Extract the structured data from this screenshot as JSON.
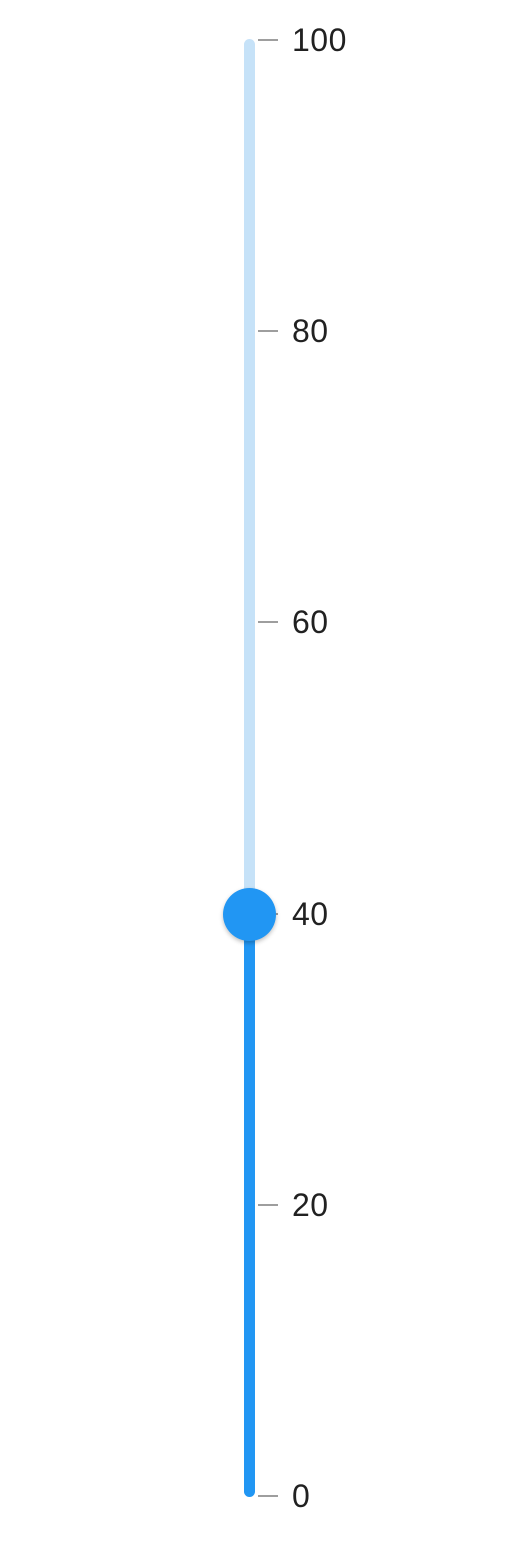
{
  "slider": {
    "orientation": "vertical",
    "min": 0,
    "max": 100,
    "value": 40,
    "ticks": [
      {
        "value": 100,
        "label": "100"
      },
      {
        "value": 80,
        "label": "80"
      },
      {
        "value": 60,
        "label": "60"
      },
      {
        "value": 40,
        "label": "40"
      },
      {
        "value": 20,
        "label": "20"
      },
      {
        "value": 0,
        "label": "0"
      }
    ],
    "colors": {
      "active": "#2196f3",
      "inactive": "#c6e2f8",
      "tick": "#9e9e9e",
      "label": "#212121"
    }
  }
}
